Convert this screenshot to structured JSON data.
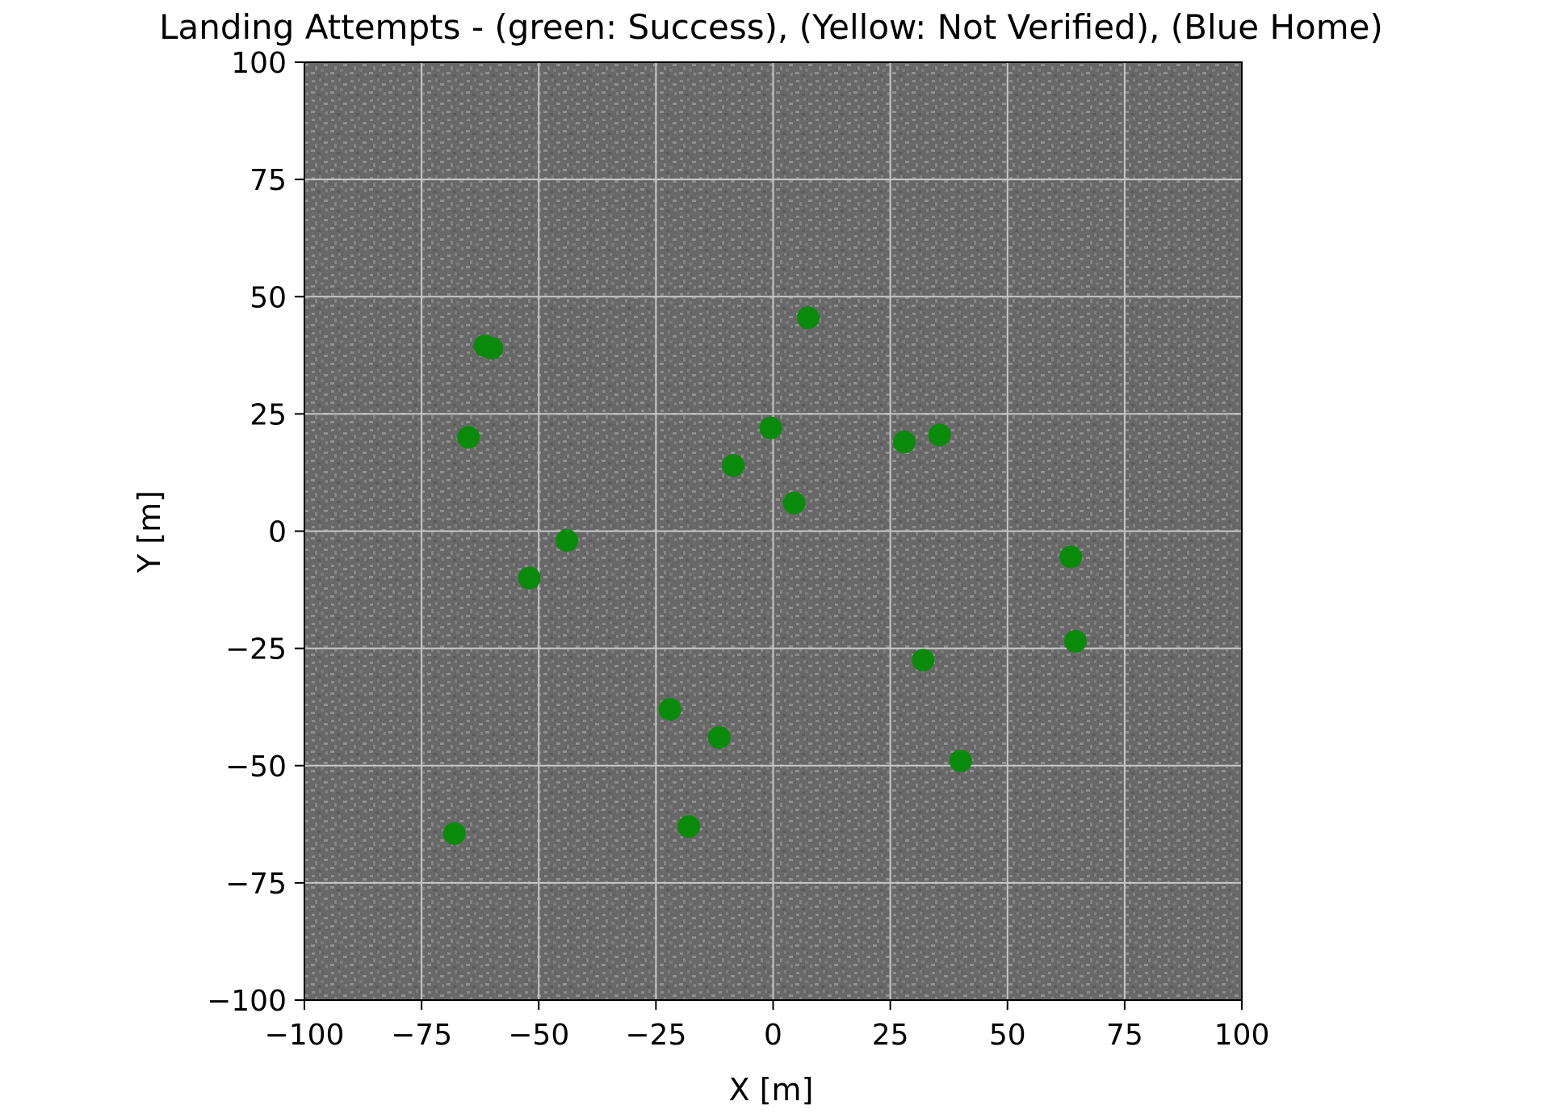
{
  "chart_data": {
    "type": "scatter",
    "title": "Landing Attempts - (green: Success), (Yellow: Not Verified), (Blue Home)",
    "xlabel": "X [m]",
    "ylabel": "Y [m]",
    "xlim": [
      -100,
      100
    ],
    "ylim": [
      -100,
      100
    ],
    "xticks": [
      -100,
      -75,
      -50,
      -25,
      0,
      25,
      50,
      75,
      100
    ],
    "yticks": [
      -100,
      -75,
      -50,
      -25,
      0,
      25,
      50,
      75,
      100
    ],
    "xtick_labels": [
      "−100",
      "−75",
      "−50",
      "−25",
      "0",
      "25",
      "50",
      "75",
      "100"
    ],
    "ytick_labels": [
      "−100",
      "−75",
      "−50",
      "−25",
      "0",
      "25",
      "50",
      "75",
      "100"
    ],
    "grid": true,
    "background": "grey textured aerial image",
    "colors": {
      "point": "#0a8a0a",
      "grid": "#c8c8c8",
      "plot_bg": "#6b6b6b",
      "plot_bg_speckle": "#8a8a8a"
    },
    "series": [
      {
        "color": "#0a8a0a",
        "points": [
          {
            "x": 7.5,
            "y": 45.5
          },
          {
            "x": -61.5,
            "y": 39.5
          },
          {
            "x": -60,
            "y": 39
          },
          {
            "x": -65,
            "y": 20
          },
          {
            "x": -0.5,
            "y": 22
          },
          {
            "x": -8.5,
            "y": 14
          },
          {
            "x": 28,
            "y": 19
          },
          {
            "x": 35.5,
            "y": 20.5
          },
          {
            "x": 4.5,
            "y": 6
          },
          {
            "x": -44,
            "y": -2
          },
          {
            "x": -52,
            "y": -10
          },
          {
            "x": 63.5,
            "y": -5.5
          },
          {
            "x": 64.5,
            "y": -23.5
          },
          {
            "x": 32,
            "y": -27.5
          },
          {
            "x": -22,
            "y": -38
          },
          {
            "x": -11.5,
            "y": -44
          },
          {
            "x": 40,
            "y": -49
          },
          {
            "x": -68,
            "y": -64.5
          },
          {
            "x": -18,
            "y": -63
          }
        ]
      }
    ]
  }
}
